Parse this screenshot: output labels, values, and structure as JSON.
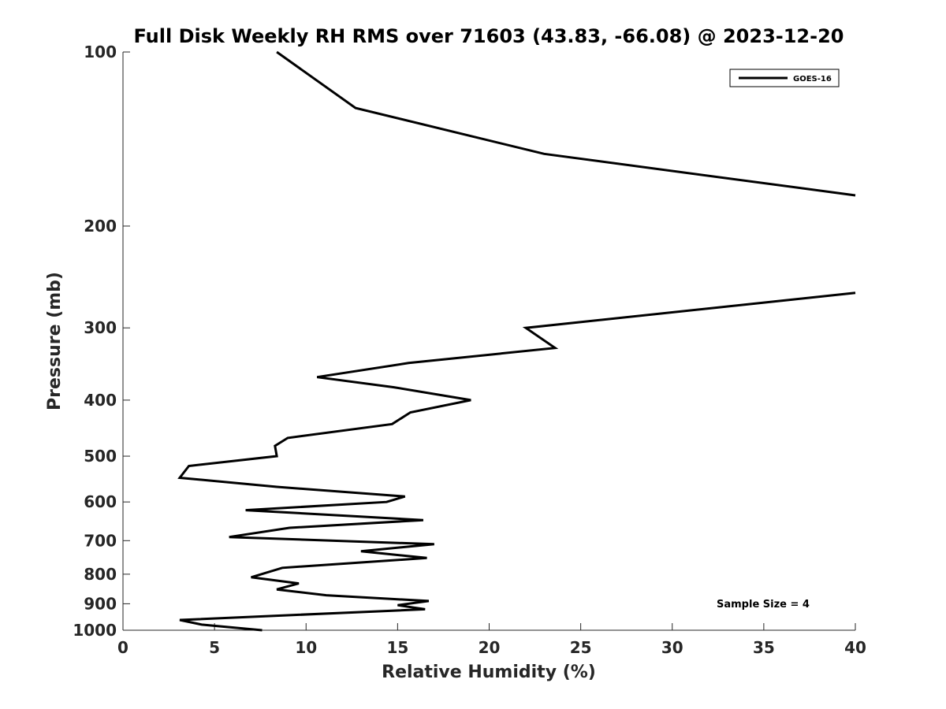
{
  "chart_data": {
    "type": "line",
    "title": "Full Disk Weekly RH RMS over 71603 (43.83, -66.08) @ 2023-12-20",
    "xlabel": "Relative Humidity (%)",
    "ylabel": "Pressure (mb)",
    "xlim": [
      0,
      40
    ],
    "ylim": [
      100,
      1000
    ],
    "yscale": "log",
    "yreversed": true,
    "xticks": [
      0,
      5,
      10,
      15,
      20,
      25,
      30,
      35,
      40
    ],
    "yticks": [
      100,
      200,
      300,
      400,
      500,
      600,
      700,
      800,
      900,
      1000
    ],
    "legend": {
      "location": "top-right",
      "entries": [
        "GOES-16"
      ]
    },
    "annotation": "Sample Size = 4",
    "series": [
      {
        "name": "GOES-16",
        "color": "#000000",
        "points": [
          [
            8.4,
            100
          ],
          [
            12.7,
            125
          ],
          [
            23.0,
            150
          ],
          [
            40.0,
            177
          ],
          null,
          [
            40.0,
            261
          ],
          [
            22.0,
            300
          ],
          [
            23.6,
            325
          ],
          [
            15.6,
            345
          ],
          [
            10.6,
            365
          ],
          [
            14.8,
            380
          ],
          [
            19.0,
            400
          ],
          [
            15.7,
            420
          ],
          [
            14.7,
            440
          ],
          [
            9.0,
            465
          ],
          [
            8.3,
            480
          ],
          [
            8.4,
            500
          ],
          [
            3.6,
            520
          ],
          [
            3.1,
            545
          ],
          [
            8.4,
            565
          ],
          [
            15.4,
            587
          ],
          [
            14.4,
            600
          ],
          [
            6.7,
            620
          ],
          [
            16.4,
            645
          ],
          [
            9.1,
            665
          ],
          [
            5.8,
            690
          ],
          [
            17.0,
            710
          ],
          [
            13.0,
            730
          ],
          [
            16.6,
            750
          ],
          [
            8.7,
            780
          ],
          [
            7.0,
            810
          ],
          [
            9.6,
            830
          ],
          [
            8.4,
            850
          ],
          [
            11.1,
            870
          ],
          [
            16.7,
            890
          ],
          [
            15.0,
            905
          ],
          [
            16.5,
            920
          ],
          [
            3.1,
            960
          ],
          [
            4.3,
            978
          ],
          [
            7.6,
            1000
          ]
        ]
      }
    ]
  }
}
